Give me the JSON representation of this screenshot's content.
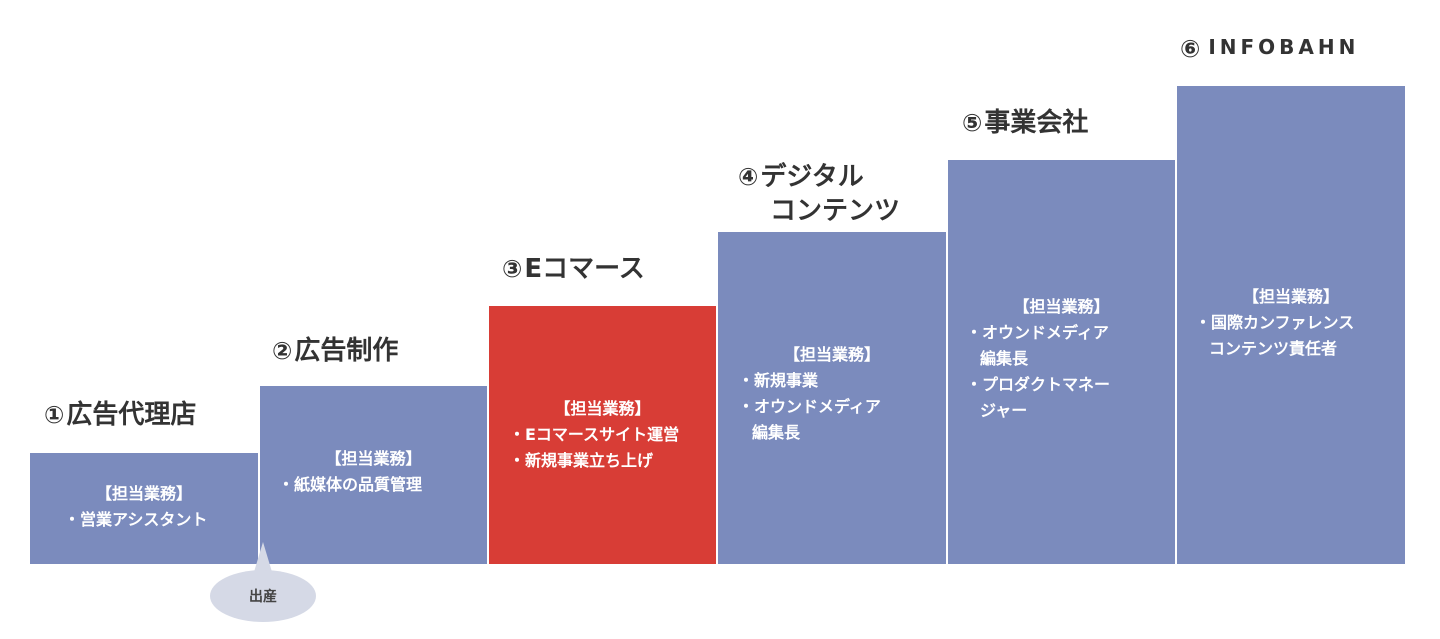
{
  "steps": [
    {
      "num": "①",
      "title": "広告代理店",
      "heading": "【担当業務】",
      "duties": [
        "・営業アシスタント"
      ]
    },
    {
      "num": "②",
      "title": "広告制作",
      "heading": "【担当業務】",
      "duties": [
        "・紙媒体の品質管理"
      ]
    },
    {
      "num": "③",
      "title": "Eコマース",
      "heading": "【担当業務】",
      "duties": [
        "・Eコマースサイト運営",
        "・新規事業立ち上げ"
      ]
    },
    {
      "num": "④",
      "title_line1": "デジタル",
      "title_line2": "コンテンツ",
      "heading": "【担当業務】",
      "duties": [
        "・新規事業",
        "・オウンドメディア",
        "編集長"
      ]
    },
    {
      "num": "⑤",
      "title": "事業会社",
      "heading": "【担当業務】",
      "duties": [
        "・オウンドメディア",
        "編集長",
        "・プロダクトマネー",
        "ジャー"
      ]
    },
    {
      "num": "⑥",
      "logo": "INFOBAHN",
      "heading": "【担当業務】",
      "duties": [
        "・国際カンファレンス",
        "コンテンツ責任者"
      ]
    }
  ],
  "bubble": "出産",
  "colors": {
    "step": "#7b8bbd",
    "highlight": "#d83d36",
    "bubble": "#d5d9e6"
  }
}
